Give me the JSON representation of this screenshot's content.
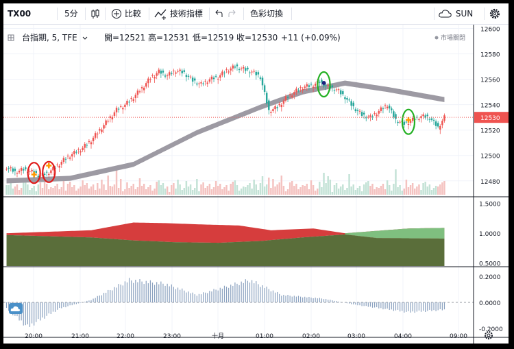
{
  "toolbar": {
    "symbol": "TX00",
    "interval": "5分",
    "compare_label": "比較",
    "indicators_label": "技術指標",
    "color_switch_label": "色彩切換",
    "theme_label": "SUN"
  },
  "legend": {
    "symbol_line": "台指期, 5, TFE",
    "open": "開=12521",
    "high": "高=12531",
    "low": "低=12519",
    "close": "收=12530",
    "change": "+11 (+0.09%)",
    "market_status": "市場關閉"
  },
  "colors": {
    "up": "#ef5350",
    "down": "#26a69a",
    "band": "#9d9aa3",
    "upper_fill": "#d63d3d",
    "lower_fill": "#5a6e3a",
    "green_fill": "#7fbf7f",
    "osc": "#8aa1bf",
    "marker": "#ff9800",
    "highlight_red": "#e01b1b",
    "highlight_green": "#22b022"
  },
  "chart_data": [
    {
      "type": "candlestick",
      "x_ticks": [
        "20:00",
        "21:00",
        "22:00",
        "23:00",
        "十月",
        "01:00",
        "02:00",
        "03:00",
        "04:00",
        "09:00"
      ],
      "y_ticks": [
        12480,
        12500,
        12520,
        12540,
        12560,
        12580,
        12600
      ],
      "ylim": [
        12468,
        12603
      ],
      "last_price": 12530,
      "close_anchors": [
        [
          0,
          12491
        ],
        [
          4,
          12487
        ],
        [
          8,
          12489
        ],
        [
          12,
          12487
        ],
        [
          16,
          12484
        ],
        [
          20,
          12487
        ],
        [
          24,
          12492
        ],
        [
          28,
          12498
        ],
        [
          32,
          12502
        ],
        [
          36,
          12506
        ],
        [
          40,
          12512
        ],
        [
          44,
          12520
        ],
        [
          48,
          12528
        ],
        [
          52,
          12536
        ],
        [
          56,
          12540
        ],
        [
          60,
          12546
        ],
        [
          64,
          12553
        ],
        [
          68,
          12561
        ],
        [
          72,
          12566
        ],
        [
          76,
          12563
        ],
        [
          80,
          12567
        ],
        [
          84,
          12565
        ],
        [
          88,
          12559
        ],
        [
          92,
          12556
        ],
        [
          96,
          12560
        ],
        [
          100,
          12562
        ],
        [
          104,
          12567
        ],
        [
          108,
          12570
        ],
        [
          112,
          12568
        ],
        [
          116,
          12566
        ],
        [
          120,
          12562
        ],
        [
          124,
          12535
        ],
        [
          128,
          12538
        ],
        [
          132,
          12545
        ],
        [
          136,
          12550
        ],
        [
          140,
          12554
        ],
        [
          144,
          12555
        ],
        [
          148,
          12558
        ],
        [
          152,
          12554
        ],
        [
          156,
          12552
        ],
        [
          160,
          12546
        ],
        [
          164,
          12538
        ],
        [
          168,
          12532
        ],
        [
          172,
          12530
        ],
        [
          176,
          12535
        ],
        [
          180,
          12540
        ],
        [
          184,
          12528
        ],
        [
          188,
          12525
        ],
        [
          192,
          12528
        ],
        [
          196,
          12531
        ],
        [
          200,
          12530
        ],
        [
          204,
          12522
        ],
        [
          207,
          12530
        ]
      ],
      "band_upper_anchors": [
        [
          0,
          12482
        ],
        [
          30,
          12484
        ],
        [
          60,
          12495
        ],
        [
          90,
          12520
        ],
        [
          120,
          12540
        ],
        [
          140,
          12552
        ],
        [
          160,
          12559
        ],
        [
          180,
          12554
        ],
        [
          207,
          12546
        ]
      ],
      "band_width": 4,
      "markers": [
        {
          "bar": 13,
          "price": 12485
        },
        {
          "bar": 20,
          "price": 12492
        },
        {
          "bar": 190,
          "price": 12528
        }
      ],
      "highlights": [
        {
          "bar": 13,
          "color": "red"
        },
        {
          "bar": 20,
          "color": "red"
        },
        {
          "bar": 150,
          "color": "green"
        },
        {
          "bar": 190,
          "color": "green"
        }
      ]
    },
    {
      "type": "area",
      "y_ticks": [
        "1.5000",
        "1.0000",
        "0.5000"
      ],
      "ylim": [
        0.45,
        1.6
      ],
      "upper_anchors": [
        [
          0,
          1.0
        ],
        [
          40,
          1.05
        ],
        [
          60,
          1.18
        ],
        [
          75,
          1.17
        ],
        [
          90,
          1.15
        ],
        [
          110,
          1.13
        ],
        [
          125,
          1.05
        ],
        [
          145,
          1.08
        ],
        [
          160,
          1.0
        ],
        [
          190,
          1.08
        ],
        [
          207,
          1.09
        ]
      ],
      "lower_anchors": [
        [
          0,
          0.97
        ],
        [
          40,
          0.93
        ],
        [
          60,
          0.88
        ],
        [
          80,
          0.85
        ],
        [
          100,
          0.84
        ],
        [
          120,
          0.87
        ],
        [
          140,
          0.93
        ],
        [
          160,
          0.98
        ],
        [
          175,
          0.92
        ],
        [
          207,
          0.91
        ]
      ]
    },
    {
      "type": "histogram",
      "y_ticks": [
        "0.2000",
        "0.0000",
        "-0.2000"
      ],
      "ylim": [
        -0.27,
        0.27
      ],
      "value_anchors": [
        [
          0,
          -0.05
        ],
        [
          10,
          -0.2
        ],
        [
          25,
          -0.05
        ],
        [
          40,
          0.02
        ],
        [
          58,
          0.18
        ],
        [
          75,
          0.15
        ],
        [
          90,
          0.06
        ],
        [
          115,
          0.18
        ],
        [
          130,
          0.06
        ],
        [
          150,
          0.03
        ],
        [
          165,
          -0.02
        ],
        [
          190,
          -0.08
        ],
        [
          207,
          -0.06
        ]
      ]
    }
  ]
}
